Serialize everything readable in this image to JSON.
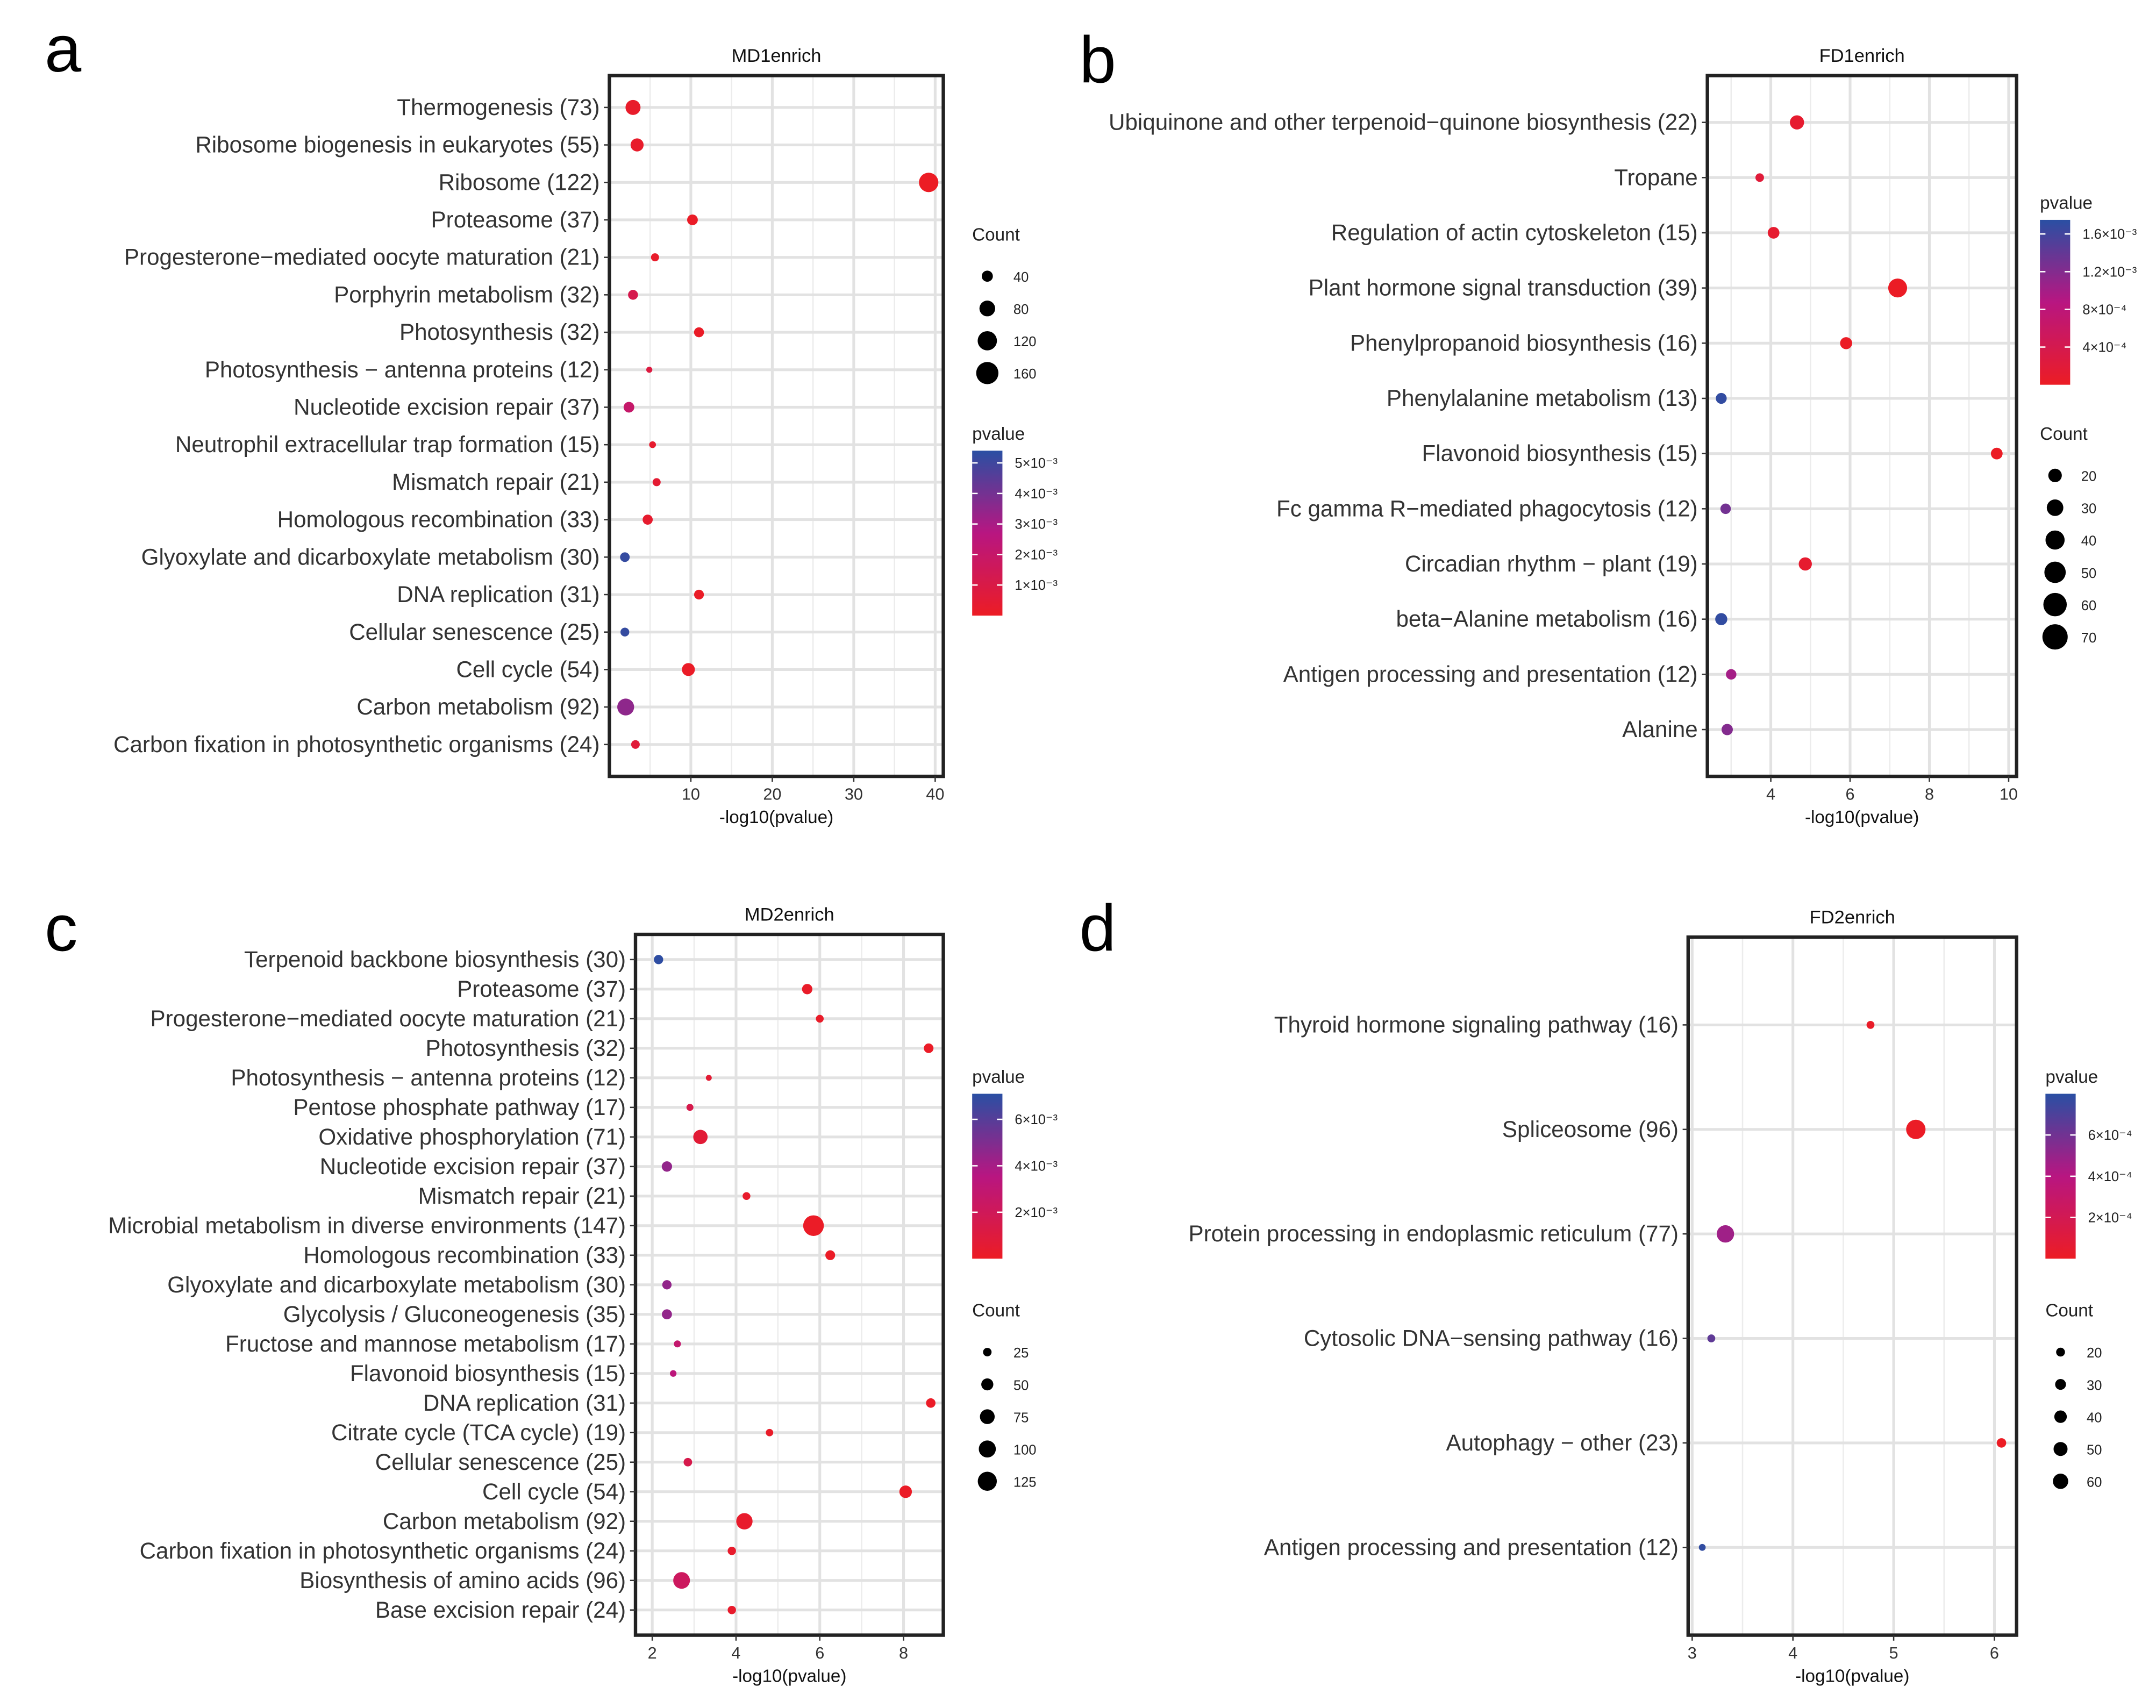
{
  "chart_data": [
    {
      "panel": "a",
      "type": "scatter",
      "title": "MD1enrich",
      "xlabel": "-log10(pvalue)",
      "xlim": [
        0,
        41
      ],
      "xticks": [
        10,
        20,
        30,
        40
      ],
      "grid": true,
      "size_legend": {
        "title": "Count",
        "values": [
          40,
          80,
          120,
          160
        ]
      },
      "color_legend": {
        "title": "pvalue",
        "max": 0.0054,
        "ticks": [
          0.005,
          0.004,
          0.003,
          0.002,
          0.001
        ],
        "labels": [
          "5×10⁻³",
          "4×10⁻³",
          "3×10⁻³",
          "2×10⁻³",
          "1×10⁻³"
        ]
      },
      "points": [
        {
          "term": "Thermogenesis (73)",
          "x": 2.9,
          "count": 73,
          "pvalue": 0.0002
        },
        {
          "term": "Ribosome biogenesis in eukaryotes (55)",
          "x": 3.4,
          "count": 55,
          "pvalue": 0.0002
        },
        {
          "term": "Ribosome (122)",
          "x": 39.2,
          "count": 122,
          "pvalue": 1e-05
        },
        {
          "term": "Proteasome (37)",
          "x": 10.2,
          "count": 37,
          "pvalue": 0.0001
        },
        {
          "term": "Progesterone−mediated oocyte maturation (21)",
          "x": 5.6,
          "count": 21,
          "pvalue": 0.0002
        },
        {
          "term": "Porphyrin metabolism (32)",
          "x": 2.9,
          "count": 32,
          "pvalue": 0.0012
        },
        {
          "term": "Photosynthesis (32)",
          "x": 11.0,
          "count": 32,
          "pvalue": 0.0001
        },
        {
          "term": "Photosynthesis − antenna proteins (12)",
          "x": 4.9,
          "count": 12,
          "pvalue": 0.0008
        },
        {
          "term": "Nucleotide excision repair (37)",
          "x": 2.4,
          "count": 37,
          "pvalue": 0.002
        },
        {
          "term": "Neutrophil extracellular trap formation (15)",
          "x": 5.3,
          "count": 15,
          "pvalue": 0.0003
        },
        {
          "term": "Mismatch repair (21)",
          "x": 5.8,
          "count": 21,
          "pvalue": 0.0004
        },
        {
          "term": "Homologous recombination (33)",
          "x": 4.7,
          "count": 33,
          "pvalue": 0.0003
        },
        {
          "term": "Glyoxylate and dicarboxylate metabolism (30)",
          "x": 1.9,
          "count": 30,
          "pvalue": 0.0052
        },
        {
          "term": "DNA replication (31)",
          "x": 11.0,
          "count": 31,
          "pvalue": 0.0001
        },
        {
          "term": "Cellular senescence (25)",
          "x": 1.9,
          "count": 25,
          "pvalue": 0.0052
        },
        {
          "term": "Cell cycle (54)",
          "x": 9.7,
          "count": 54,
          "pvalue": 0.0001
        },
        {
          "term": "Carbon metabolism (92)",
          "x": 2.0,
          "count": 92,
          "pvalue": 0.0035
        },
        {
          "term": "Carbon fixation in photosynthetic organisms (24)",
          "x": 3.2,
          "count": 24,
          "pvalue": 0.0006
        }
      ]
    },
    {
      "panel": "b",
      "type": "scatter",
      "title": "FD1enrich",
      "xlabel": "-log10(pvalue)",
      "xlim": [
        2.4,
        10.2
      ],
      "xticks": [
        4,
        6,
        8,
        10
      ],
      "grid": true,
      "size_legend": {
        "title": "Count",
        "values": [
          20,
          30,
          40,
          50,
          60,
          70
        ]
      },
      "color_legend": {
        "title": "pvalue",
        "max": 0.00175,
        "ticks": [
          0.0016,
          0.0012,
          0.0008,
          0.0004
        ],
        "labels": [
          "1.6×10⁻³",
          "1.2×10⁻³",
          "8×10⁻⁴",
          "4×10⁻⁴"
        ]
      },
      "points": [
        {
          "term": "Ubiquinone and other terpenoid−quinone biosynthesis (22)",
          "x": 4.66,
          "count": 22,
          "pvalue": 0.0001
        },
        {
          "term": "Tropane",
          "x": 3.72,
          "count": 8,
          "pvalue": 0.0002
        },
        {
          "term": "Regulation of actin cytoskeleton (15)",
          "x": 4.07,
          "count": 15,
          "pvalue": 0.0001
        },
        {
          "term": "Plant hormone signal transduction (39)",
          "x": 7.2,
          "count": 39,
          "pvalue": 1e-05
        },
        {
          "term": "Phenylpropanoid biosynthesis (16)",
          "x": 5.9,
          "count": 16,
          "pvalue": 1e-05
        },
        {
          "term": "Phenylalanine metabolism (13)",
          "x": 2.75,
          "count": 13,
          "pvalue": 0.0017
        },
        {
          "term": "Flavonoid biosynthesis (15)",
          "x": 9.7,
          "count": 15,
          "pvalue": 1e-05
        },
        {
          "term": "Fc gamma R−mediated phagocytosis (12)",
          "x": 2.86,
          "count": 12,
          "pvalue": 0.0013
        },
        {
          "term": "Circadian rhythm − plant (19)",
          "x": 4.87,
          "count": 19,
          "pvalue": 0.0001
        },
        {
          "term": "beta−Alanine metabolism (16)",
          "x": 2.75,
          "count": 16,
          "pvalue": 0.0017
        },
        {
          "term": "Antigen processing and presentation (12)",
          "x": 3.0,
          "count": 12,
          "pvalue": 0.001
        },
        {
          "term": "Alanine",
          "x": 2.9,
          "count": 14,
          "pvalue": 0.0012
        }
      ]
    },
    {
      "panel": "c",
      "type": "scatter",
      "title": "MD2enrich",
      "xlabel": "-log10(pvalue)",
      "xlim": [
        1.6,
        8.95
      ],
      "xticks": [
        2,
        4,
        6,
        8
      ],
      "grid": true,
      "size_legend": {
        "title": "Count",
        "values": [
          25,
          50,
          75,
          100,
          125
        ]
      },
      "color_legend": {
        "title": "pvalue",
        "max": 0.0071,
        "ticks": [
          0.006,
          0.004,
          0.002
        ],
        "labels": [
          "6×10⁻³",
          "4×10⁻³",
          "2×10⁻³"
        ]
      },
      "points": [
        {
          "term": "Terpenoid backbone biosynthesis (30)",
          "x": 2.15,
          "count": 30,
          "pvalue": 0.007
        },
        {
          "term": "Proteasome (37)",
          "x": 5.7,
          "count": 37,
          "pvalue": 0.0002
        },
        {
          "term": "Progesterone−mediated oocyte maturation (21)",
          "x": 6.0,
          "count": 21,
          "pvalue": 0.0002
        },
        {
          "term": "Photosynthesis (32)",
          "x": 8.6,
          "count": 32,
          "pvalue": 0.0001
        },
        {
          "term": "Photosynthesis − antenna proteins (12)",
          "x": 3.35,
          "count": 12,
          "pvalue": 0.0006
        },
        {
          "term": "Pentose phosphate pathway (17)",
          "x": 2.9,
          "count": 17,
          "pvalue": 0.0015
        },
        {
          "term": "Oxidative phosphorylation (71)",
          "x": 3.15,
          "count": 71,
          "pvalue": 0.0007
        },
        {
          "term": "Nucleotide excision repair (37)",
          "x": 2.35,
          "count": 37,
          "pvalue": 0.0045
        },
        {
          "term": "Mismatch repair (21)",
          "x": 4.25,
          "count": 21,
          "pvalue": 0.0003
        },
        {
          "term": "Microbial metabolism in diverse environments (147)",
          "x": 5.85,
          "count": 147,
          "pvalue": 0.0001
        },
        {
          "term": "Homologous recombination (33)",
          "x": 6.25,
          "count": 33,
          "pvalue": 0.0001
        },
        {
          "term": "Glyoxylate and dicarboxylate metabolism (30)",
          "x": 2.35,
          "count": 30,
          "pvalue": 0.0045
        },
        {
          "term": "Glycolysis / Gluconeogenesis (35)",
          "x": 2.35,
          "count": 35,
          "pvalue": 0.0045
        },
        {
          "term": "Fructose and mannose metabolism (17)",
          "x": 2.6,
          "count": 17,
          "pvalue": 0.0028
        },
        {
          "term": "Flavonoid biosynthesis (15)",
          "x": 2.5,
          "count": 15,
          "pvalue": 0.0033
        },
        {
          "term": "DNA replication (31)",
          "x": 8.65,
          "count": 31,
          "pvalue": 0.0001
        },
        {
          "term": "Citrate cycle (TCA cycle) (19)",
          "x": 4.8,
          "count": 19,
          "pvalue": 0.0002
        },
        {
          "term": "Cellular senescence (25)",
          "x": 2.85,
          "count": 25,
          "pvalue": 0.0015
        },
        {
          "term": "Cell cycle (54)",
          "x": 8.05,
          "count": 54,
          "pvalue": 0.0001
        },
        {
          "term": "Carbon metabolism (92)",
          "x": 4.2,
          "count": 92,
          "pvalue": 0.0003
        },
        {
          "term": "Carbon fixation in photosynthetic organisms (24)",
          "x": 3.9,
          "count": 24,
          "pvalue": 0.0003
        },
        {
          "term": "Biosynthesis of amino acids (96)",
          "x": 2.7,
          "count": 96,
          "pvalue": 0.0022
        },
        {
          "term": "Base excision repair (24)",
          "x": 3.9,
          "count": 24,
          "pvalue": 0.0003
        }
      ]
    },
    {
      "panel": "d",
      "type": "scatter",
      "title": "FD2enrich",
      "xlabel": "-log10(pvalue)",
      "xlim": [
        2.96,
        6.22
      ],
      "xticks": [
        3,
        4,
        5,
        6
      ],
      "grid": true,
      "size_legend": {
        "title": "Count",
        "values": [
          20,
          30,
          40,
          50,
          60
        ]
      },
      "color_legend": {
        "title": "pvalue",
        "max": 0.0008,
        "ticks": [
          0.0006,
          0.0004,
          0.0002
        ],
        "labels": [
          "6×10⁻⁴",
          "4×10⁻⁴",
          "2×10⁻⁴"
        ]
      },
      "points": [
        {
          "term": "Thyroid hormone signaling pathway (16)",
          "x": 4.77,
          "count": 16,
          "pvalue": 2e-05
        },
        {
          "term": "Spliceosome (96)",
          "x": 5.22,
          "count": 96,
          "pvalue": 1e-05
        },
        {
          "term": "Protein processing in endoplasmic reticulum (77)",
          "x": 3.33,
          "count": 77,
          "pvalue": 0.00047
        },
        {
          "term": "Cytosolic DNA−sensing pathway (16)",
          "x": 3.19,
          "count": 16,
          "pvalue": 0.00065
        },
        {
          "term": "Autophagy − other (23)",
          "x": 6.07,
          "count": 23,
          "pvalue": 1e-06
        },
        {
          "term": "Antigen processing and presentation (12)",
          "x": 3.1,
          "count": 12,
          "pvalue": 0.00078
        }
      ]
    }
  ]
}
